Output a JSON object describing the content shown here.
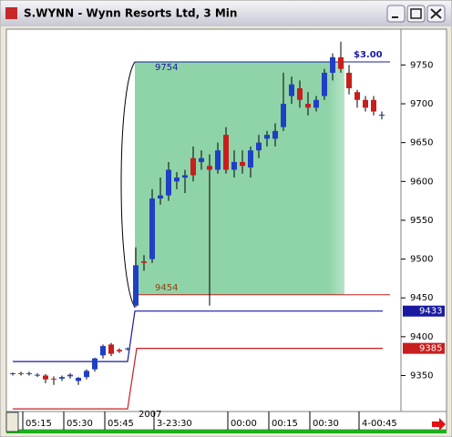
{
  "window": {
    "title": "S.WYNN - Wynn Resorts Ltd, 3 Min"
  },
  "chart_data": {
    "type": "candlestick",
    "categories": [
      null,
      null,
      "05:15",
      null,
      null,
      null,
      null,
      "05:30",
      null,
      null,
      null,
      null,
      "05:45",
      null,
      null,
      null,
      null,
      null,
      "3-23:30",
      null,
      null,
      null,
      null,
      null,
      null,
      null,
      null,
      "00:00",
      null,
      null,
      null,
      null,
      "00:15",
      null,
      null,
      null,
      null,
      "00:30",
      null,
      null,
      null,
      null,
      null,
      "4-00:45",
      null,
      null
    ],
    "year_label": "2007",
    "open": [
      9352,
      9353,
      9352,
      9350,
      9350,
      9346,
      9346,
      9349,
      9343,
      9348,
      9358,
      9376,
      9390,
      9383,
      9384,
      9440,
      9497,
      9500,
      9578,
      9582,
      9600,
      9605,
      9630,
      9625,
      9620,
      9615,
      9660,
      9615,
      9625,
      9618,
      9640,
      9655,
      9655,
      9670,
      9710,
      9720,
      9700,
      9695,
      9710,
      9740,
      9760,
      9740,
      9715,
      9705,
      9705,
      9685
    ],
    "high": [
      9354,
      9355,
      9355,
      9353,
      9352,
      9349,
      9350,
      9353,
      9348,
      9358,
      9373,
      9390,
      9392,
      9385,
      9386,
      9515,
      9505,
      9590,
      9605,
      9625,
      9612,
      9615,
      9645,
      9640,
      9635,
      9650,
      9670,
      9640,
      9640,
      9645,
      9660,
      9665,
      9675,
      9740,
      9735,
      9730,
      9715,
      9710,
      9745,
      9765,
      9780,
      9750,
      9718,
      9710,
      9710,
      9690
    ],
    "low": [
      9350,
      9350,
      9350,
      9348,
      9340,
      9338,
      9343,
      9346,
      9338,
      9345,
      9355,
      9372,
      9375,
      9379,
      9382,
      9438,
      9485,
      9495,
      9570,
      9575,
      9590,
      9585,
      9600,
      9615,
      9440,
      9610,
      9610,
      9605,
      9610,
      9605,
      9630,
      9645,
      9645,
      9665,
      9700,
      9695,
      9685,
      9690,
      9705,
      9730,
      9740,
      9712,
      9695,
      9690,
      9685,
      9680
    ],
    "close": [
      9353,
      9352,
      9353,
      9351,
      9345,
      9345,
      9348,
      9351,
      9347,
      9356,
      9372,
      9388,
      9378,
      9381,
      9385,
      9492,
      9495,
      9578,
      9582,
      9615,
      9605,
      9608,
      9608,
      9630,
      9615,
      9640,
      9615,
      9625,
      9620,
      9640,
      9650,
      9660,
      9665,
      9700,
      9725,
      9705,
      9695,
      9705,
      9740,
      9760,
      9745,
      9720,
      9705,
      9695,
      9690,
      9686
    ],
    "up_color": "#1f3fc4",
    "down_color": "#c81e1e",
    "ylim": [
      9306,
      9795
    ],
    "yticks": [
      9350,
      9400,
      9450,
      9500,
      9550,
      9600,
      9650,
      9700,
      9750
    ],
    "blue_level": {
      "before": 9368,
      "after": 9433,
      "color": "#1a1aa0"
    },
    "red_level": {
      "before": 9307,
      "after": 9385,
      "color": "#c81e1e"
    },
    "measure": {
      "high": 9754,
      "low": 9454,
      "amount": "$3.00",
      "fill": "#8fd4a8",
      "high_color": "#1a1aa0",
      "low_color": "#c81e1e"
    }
  }
}
